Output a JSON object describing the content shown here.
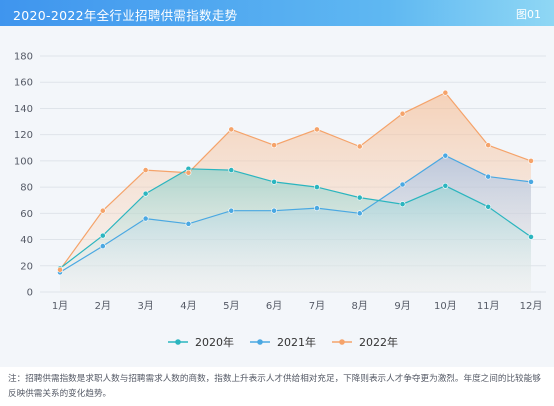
{
  "header": {
    "title": "2020-2022年全行业招聘供需指数走势",
    "figure_number": "图01",
    "colors": {
      "gradient_start": "#3f95ee",
      "gradient_end": "#8fd7f4",
      "text": "#ffffff"
    }
  },
  "chart_data": {
    "type": "line",
    "title": "",
    "xlabel": "",
    "ylabel": "",
    "categories": [
      "1月",
      "2月",
      "3月",
      "4月",
      "5月",
      "6月",
      "7月",
      "8月",
      "9月",
      "10月",
      "11月",
      "12月"
    ],
    "ylim": [
      0,
      180
    ],
    "yticks": [
      0,
      20,
      40,
      60,
      80,
      100,
      120,
      140,
      160,
      180
    ],
    "grid": true,
    "legend_position": "bottom-center",
    "series": [
      {
        "name": "2020年",
        "color": "#2bb5bf",
        "fill": "#73ccc8",
        "values": [
          18,
          43,
          75,
          94,
          93,
          84,
          80,
          72,
          67,
          81,
          65,
          42
        ]
      },
      {
        "name": "2021年",
        "color": "#4aa8e2",
        "fill": "#9cc8ec",
        "values": [
          15,
          35,
          56,
          52,
          62,
          62,
          64,
          60,
          82,
          104,
          88,
          84
        ]
      },
      {
        "name": "2022年",
        "color": "#f5a36a",
        "fill": "#f7c7a6",
        "values": [
          17,
          62,
          93,
          91,
          124,
          112,
          124,
          111,
          136,
          152,
          112,
          100
        ]
      }
    ]
  },
  "note": "注：招聘供需指数是求职人数与招聘需求人数的商数，指数上升表示人才供给相对充足，下降则表示人才争夺更为激烈。年度之间的比较能够反映供需关系的变化趋势。"
}
